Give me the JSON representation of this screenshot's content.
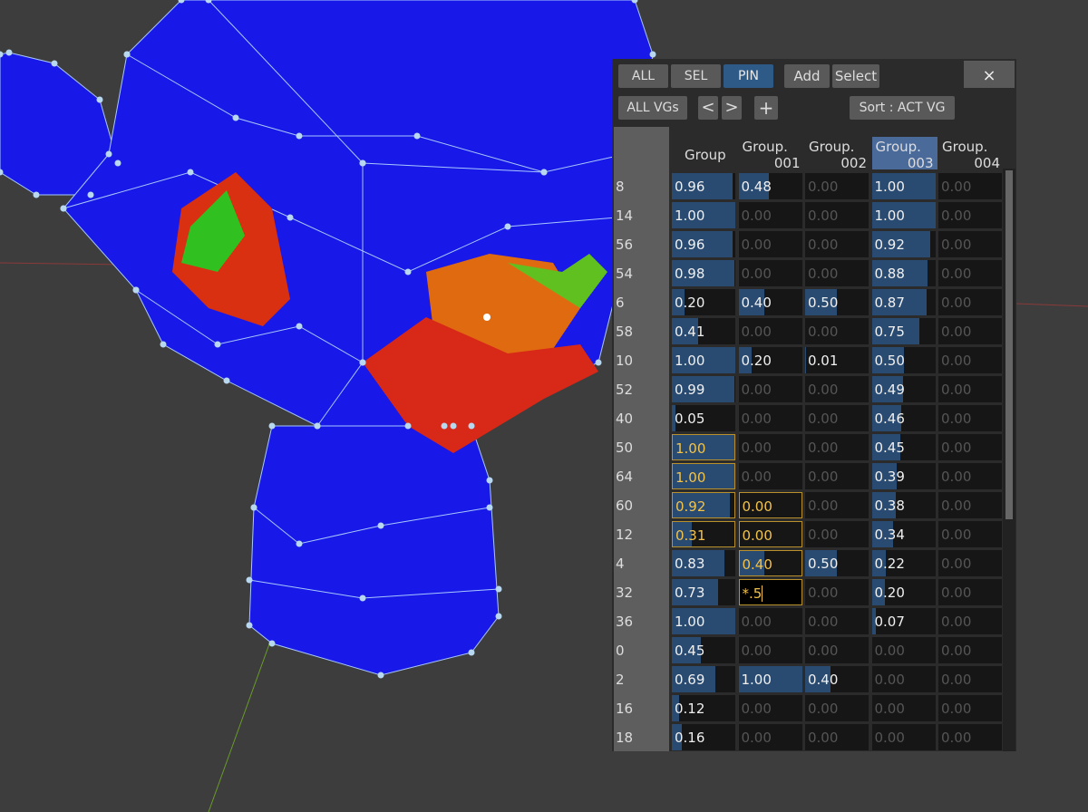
{
  "toolbar": {
    "buttons": [
      "ALL",
      "SEL",
      "PIN"
    ],
    "active_button": 2,
    "actions": [
      "Add",
      "Select"
    ],
    "close": "×"
  },
  "toolbar2": {
    "filter": "ALL VGs",
    "prev": "<",
    "next": ">",
    "add": "+",
    "sort": "Sort : ACT VG"
  },
  "table": {
    "active_column": 3,
    "headers": [
      {
        "line1": "Group",
        "line2": ""
      },
      {
        "line1": "Group.",
        "line2": "001"
      },
      {
        "line1": "Group.",
        "line2": "002"
      },
      {
        "line1": "Group.",
        "line2": "003"
      },
      {
        "line1": "Group.",
        "line2": "004"
      }
    ],
    "rows": [
      {
        "index": "8",
        "cells": [
          "0.96",
          "0.48",
          "0.00",
          "1.00",
          "0.00"
        ],
        "selected": []
      },
      {
        "index": "14",
        "cells": [
          "1.00",
          "0.00",
          "0.00",
          "1.00",
          "0.00"
        ],
        "selected": []
      },
      {
        "index": "56",
        "cells": [
          "0.96",
          "0.00",
          "0.00",
          "0.92",
          "0.00"
        ],
        "selected": []
      },
      {
        "index": "54",
        "cells": [
          "0.98",
          "0.00",
          "0.00",
          "0.88",
          "0.00"
        ],
        "selected": []
      },
      {
        "index": "6",
        "cells": [
          "0.20",
          "0.40",
          "0.50",
          "0.87",
          "0.00"
        ],
        "selected": []
      },
      {
        "index": "58",
        "cells": [
          "0.41",
          "0.00",
          "0.00",
          "0.75",
          "0.00"
        ],
        "selected": []
      },
      {
        "index": "10",
        "cells": [
          "1.00",
          "0.20",
          "0.01",
          "0.50",
          "0.00"
        ],
        "selected": []
      },
      {
        "index": "52",
        "cells": [
          "0.99",
          "0.00",
          "0.00",
          "0.49",
          "0.00"
        ],
        "selected": []
      },
      {
        "index": "40",
        "cells": [
          "0.05",
          "0.00",
          "0.00",
          "0.46",
          "0.00"
        ],
        "selected": []
      },
      {
        "index": "50",
        "cells": [
          "1.00",
          "0.00",
          "0.00",
          "0.45",
          "0.00"
        ],
        "selected": [
          0
        ]
      },
      {
        "index": "64",
        "cells": [
          "1.00",
          "0.00",
          "0.00",
          "0.39",
          "0.00"
        ],
        "selected": [
          0
        ]
      },
      {
        "index": "60",
        "cells": [
          "0.92",
          "0.00",
          "0.00",
          "0.38",
          "0.00"
        ],
        "selected": [
          0,
          1
        ]
      },
      {
        "index": "12",
        "cells": [
          "0.31",
          "0.00",
          "0.00",
          "0.34",
          "0.00"
        ],
        "selected": [
          0,
          1
        ]
      },
      {
        "index": "4",
        "cells": [
          "0.83",
          "0.40",
          "0.50",
          "0.22",
          "0.00"
        ],
        "selected": [
          1
        ]
      },
      {
        "index": "32",
        "cells": [
          "0.73",
          "*.5",
          "0.00",
          "0.20",
          "0.00"
        ],
        "selected": [],
        "editing": 1
      },
      {
        "index": "36",
        "cells": [
          "1.00",
          "0.00",
          "0.00",
          "0.07",
          "0.00"
        ],
        "selected": []
      },
      {
        "index": "0",
        "cells": [
          "0.45",
          "0.00",
          "0.00",
          "0.00",
          "0.00"
        ],
        "selected": []
      },
      {
        "index": "2",
        "cells": [
          "0.69",
          "1.00",
          "0.40",
          "0.00",
          "0.00"
        ],
        "selected": []
      },
      {
        "index": "16",
        "cells": [
          "0.12",
          "0.00",
          "0.00",
          "0.00",
          "0.00"
        ],
        "selected": []
      },
      {
        "index": "18",
        "cells": [
          "0.16",
          "0.00",
          "0.00",
          "0.00",
          "0.00"
        ],
        "selected": []
      }
    ]
  }
}
